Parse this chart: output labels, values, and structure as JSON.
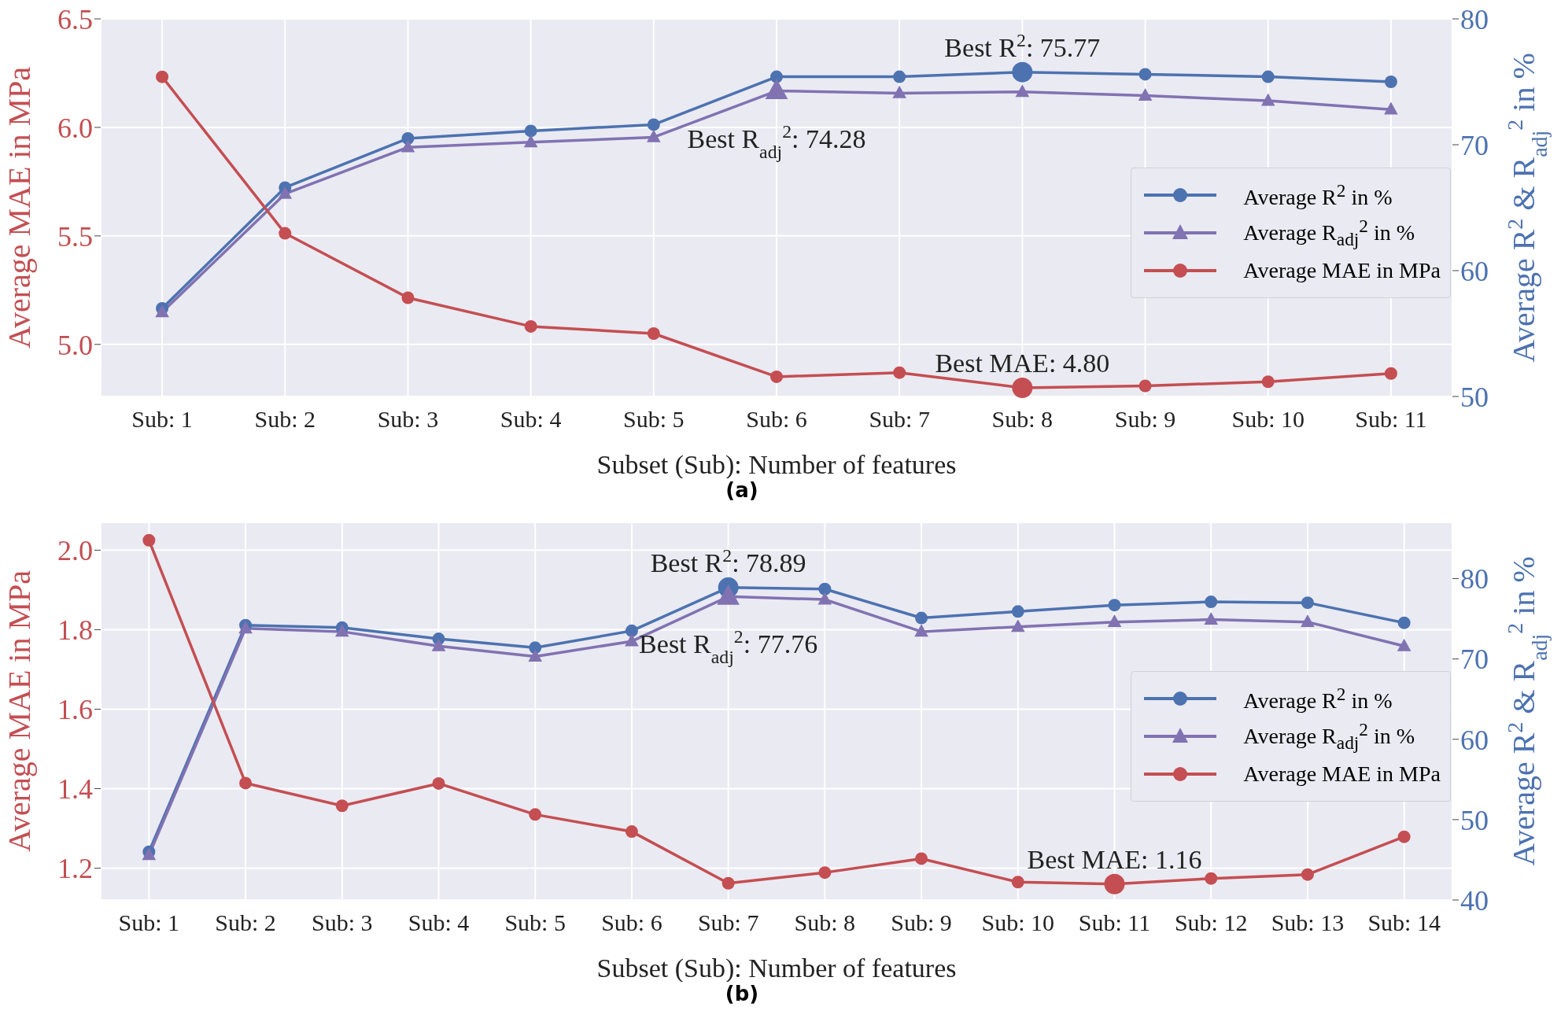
{
  "chart_data": [
    {
      "type": "line",
      "xlabel": "Subset (Sub): Number of features",
      "ylabel": "Average MAE in MPa",
      "y2label": "Average R$^{2}$ & R$_{adj}$$^{2}$ in %",
      "categories": [
        "Sub: 1",
        "Sub: 2",
        "Sub: 3",
        "Sub: 4",
        "Sub: 5",
        "Sub: 6",
        "Sub: 7",
        "Sub: 8",
        "Sub: 9",
        "Sub: 10",
        "Sub: 11"
      ],
      "series": [
        {
          "name": "Average R$^{2}$ in %",
          "color": "#4c72b0",
          "axis": "y2",
          "marker": "circle",
          "values": [
            57.0,
            66.6,
            70.5,
            71.1,
            71.6,
            75.4,
            75.4,
            75.77,
            75.6,
            75.4,
            75.0
          ]
        },
        {
          "name": "Average R$_{adj}$$^{2}$ in %",
          "color": "#8172b2",
          "axis": "y2",
          "marker": "triangle",
          "values": [
            56.7,
            66.1,
            69.8,
            70.2,
            70.6,
            74.28,
            74.1,
            74.2,
            73.9,
            73.5,
            72.8
          ]
        },
        {
          "name": "Average MAE in MPa",
          "color": "#c44e52",
          "marker": "circle",
          "values": [
            6.233,
            5.512,
            5.215,
            5.083,
            5.05,
            4.851,
            4.87,
            4.8,
            4.809,
            4.828,
            4.866
          ]
        }
      ],
      "ylim": [
        4.76,
        6.5
      ],
      "yticks": [
        {
          "value": 5,
          "label": "5.0"
        },
        5.5,
        {
          "value": 6,
          "label": "6.0"
        },
        6.5
      ],
      "y2lim": [
        50,
        80
      ],
      "y2ticks": [
        50,
        60,
        70,
        80
      ],
      "grid": true,
      "legend": "right",
      "line_style": "solid",
      "annotations": [
        "Best R$^{2}$: 75.77",
        "Best R$_{adj}$$^{2}$: 74.28",
        {
          "text": "Best MAE: 4.80",
          "x": "Sub: 8",
          "y": 4.8
        },
        "(a)"
      ]
    },
    {
      "type": "line",
      "xlabel": "Subset (Sub): Number of features",
      "ylabel": "Average MAE in MPa",
      "y2label": "Average R$^{2}$ & R$_{adj}$$^{2}$ in %",
      "categories": [
        "Sub: 1",
        "Sub: 2",
        "Sub: 3",
        "Sub: 4",
        "Sub: 5",
        "Sub: 6",
        "Sub: 7",
        "Sub: 8",
        "Sub: 9",
        "Sub: 10",
        "Sub: 11",
        "Sub: 12",
        "Sub: 13",
        "Sub: 14"
      ],
      "series": [
        {
          "name": "Average R$^{2}$ in %",
          "color": "#4c72b0",
          "axis": "y2",
          "marker": "circle",
          "values": [
            46.0,
            74.2,
            73.9,
            72.5,
            71.4,
            73.5,
            78.89,
            78.7,
            75.1,
            75.9,
            76.7,
            77.1,
            77.0,
            74.5
          ]
        },
        {
          "name": "Average R$_{adj}$$^{2}$ in %",
          "color": "#8172b2",
          "axis": "y2",
          "marker": "triangle",
          "values": [
            45.6,
            73.8,
            73.4,
            71.6,
            70.3,
            72.2,
            77.76,
            77.4,
            73.4,
            74.0,
            74.6,
            74.9,
            74.6,
            71.6
          ]
        },
        {
          "name": "Average MAE in MPa",
          "color": "#c44e52",
          "marker": "circle",
          "values": [
            2.025,
            1.414,
            1.357,
            1.413,
            1.335,
            1.292,
            1.162,
            1.189,
            1.224,
            1.165,
            1.16,
            1.174,
            1.184,
            1.279
          ]
        }
      ],
      "ylim": [
        1.12,
        2.07
      ],
      "yticks": [
        1.2,
        1.4,
        1.6,
        1.8,
        {
          "value": 2,
          "label": "2.0"
        }
      ],
      "y2lim": [
        40,
        87
      ],
      "y2ticks": [
        40,
        50,
        60,
        70,
        80
      ],
      "grid": true,
      "legend": "right",
      "line_style": "solid",
      "annotations": [
        "Best R$^{2}$: 78.89",
        "Best R$_{adj}$$^{2}$: 77.76",
        {
          "text": "Best MAE: 1.16",
          "x": "Sub: 11",
          "y": 1.16
        },
        "(b)"
      ]
    }
  ]
}
